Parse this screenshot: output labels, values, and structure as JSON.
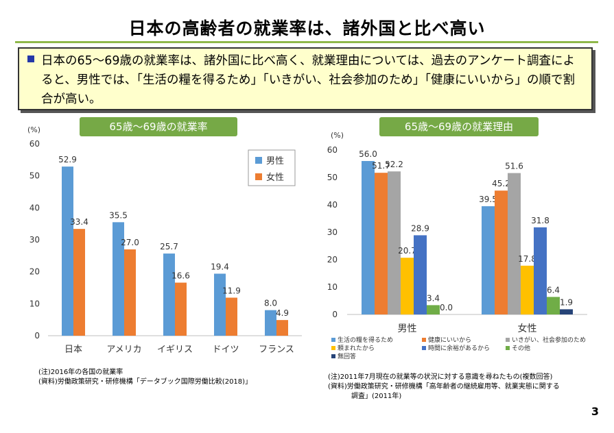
{
  "page_title": "日本の高齢者の就業率は、諸外国と比べ高い",
  "summary": "日本の65～69歳の就業率は、諸外国に比べ高く、就業理由については、過去のアンケート調査によると、男性では、「生活の糧を得るため」「いきがい、社会参加のため」「健康にいいから」の順で割合が高い。",
  "page_number": "3",
  "chart_data": [
    {
      "type": "bar",
      "title": "65歳～69歳の就業率",
      "unit_label": "(%)",
      "categories": [
        "日本",
        "アメリカ",
        "イギリス",
        "ドイツ",
        "フランス"
      ],
      "series": [
        {
          "name": "男性",
          "color": "#5b9bd5",
          "values": [
            52.9,
            35.5,
            25.7,
            19.4,
            8.0
          ]
        },
        {
          "name": "女性",
          "color": "#ed7d31",
          "values": [
            33.4,
            27.0,
            16.6,
            11.9,
            4.9
          ]
        }
      ],
      "ylim": [
        0,
        60
      ],
      "yticks": [
        0,
        10,
        20,
        30,
        40,
        50,
        60
      ],
      "legend": "top-right",
      "notes": [
        "(注)2016年の各国の就業率",
        "(資料)労働政策研究・研修機構「データブック国際労働比較(2018)」"
      ]
    },
    {
      "type": "bar",
      "title": "65歳～69歳の就業理由",
      "unit_label": "(%)",
      "categories": [
        "男性",
        "女性"
      ],
      "series": [
        {
          "name": "生活の糧を得るため",
          "color": "#5b9bd5",
          "values": [
            56.0,
            39.5
          ]
        },
        {
          "name": "健康にいいから",
          "color": "#ed7d31",
          "values": [
            51.7,
            45.2
          ]
        },
        {
          "name": "いきがい、社会参加のため",
          "color": "#a5a5a5",
          "values": [
            52.2,
            51.6
          ]
        },
        {
          "name": "頼まれたから",
          "color": "#ffc000",
          "values": [
            20.7,
            17.8
          ]
        },
        {
          "name": "時間に余裕があるから",
          "color": "#4472c4",
          "values": [
            28.9,
            31.8
          ]
        },
        {
          "name": "その他",
          "color": "#70ad47",
          "values": [
            3.4,
            6.4
          ]
        },
        {
          "name": "無回答",
          "color": "#264478",
          "values": [
            0.0,
            1.9
          ]
        }
      ],
      "ylim": [
        0,
        60
      ],
      "yticks": [
        0,
        10,
        20,
        30,
        40,
        50,
        60
      ],
      "legend": "bottom",
      "notes": [
        "(注)2011年7月現在の就業等の状況に対する意識を尋ねたもの(複数回答)",
        "(資料)労働政策研究・研修機構「高年齢者の継続雇用等、就業実態に関する",
        "調査」(2011年)"
      ]
    }
  ]
}
